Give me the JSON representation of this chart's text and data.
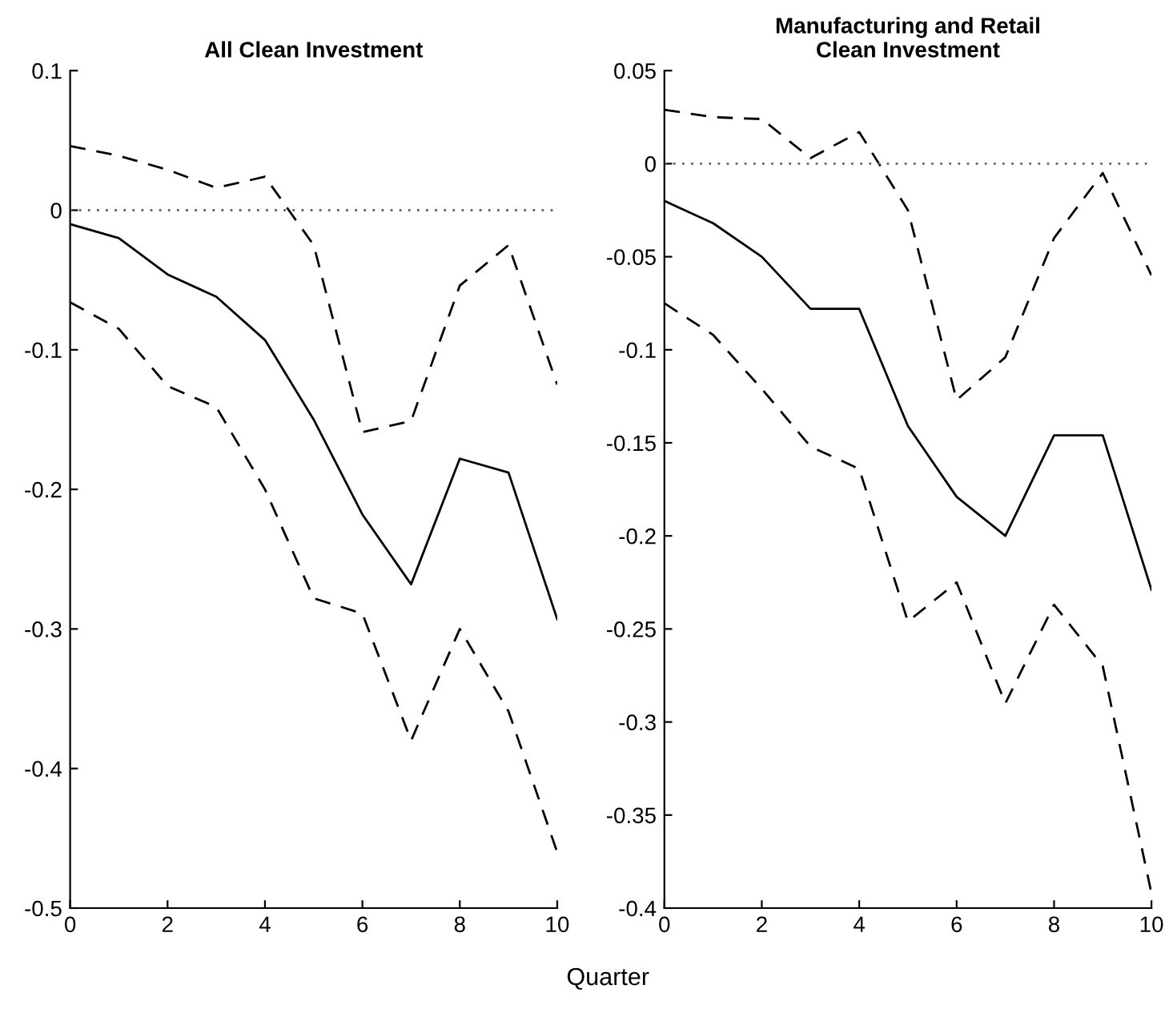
{
  "chart_data": [
    {
      "type": "line",
      "title": "All Clean Investment",
      "xlabel": "Quarter",
      "x": [
        0,
        1,
        2,
        3,
        4,
        5,
        6,
        7,
        8,
        9,
        10
      ],
      "series": [
        {
          "color": "#000000",
          "line_style": "solid",
          "values": [
            -0.01,
            -0.02,
            -0.046,
            -0.062,
            -0.093,
            -0.15,
            -0.218,
            -0.268,
            -0.178,
            -0.188,
            -0.293
          ]
        },
        {
          "color": "#000000",
          "line_style": "dashed",
          "values": [
            0.046,
            0.039,
            0.029,
            0.016,
            0.024,
            -0.025,
            -0.159,
            -0.151,
            -0.054,
            -0.025,
            -0.125
          ]
        },
        {
          "color": "#000000",
          "line_style": "dashed",
          "values": [
            -0.066,
            -0.085,
            -0.126,
            -0.141,
            -0.2,
            -0.278,
            -0.289,
            -0.38,
            -0.3,
            -0.359,
            -0.46
          ]
        }
      ],
      "xlim": [
        0,
        10
      ],
      "xticks": [
        0,
        2,
        4,
        6,
        8,
        10
      ],
      "ylim": [
        -0.5,
        0.1
      ],
      "yticks": [
        -0.5,
        -0.4,
        -0.3,
        -0.2,
        -0.1,
        0,
        0.1
      ],
      "ref_lines": [
        {
          "axis": "y",
          "value": 0,
          "color": "#666666",
          "line_style": "dotted"
        }
      ],
      "grid": false,
      "legend": false
    },
    {
      "type": "line",
      "title": "Manufacturing and Retail\nClean Investment",
      "x": [
        0,
        1,
        2,
        3,
        4,
        5,
        6,
        7,
        8,
        9,
        10
      ],
      "series": [
        {
          "color": "#000000",
          "line_style": "solid",
          "values": [
            -0.02,
            -0.032,
            -0.05,
            -0.078,
            -0.078,
            -0.141,
            -0.179,
            -0.2,
            -0.146,
            -0.146,
            -0.229
          ]
        },
        {
          "color": "#000000",
          "line_style": "dashed",
          "values": [
            0.029,
            0.025,
            0.024,
            0.003,
            0.017,
            -0.025,
            -0.127,
            -0.104,
            -0.04,
            -0.005,
            -0.06
          ]
        },
        {
          "color": "#000000",
          "line_style": "dashed",
          "values": [
            -0.075,
            -0.092,
            -0.121,
            -0.152,
            -0.164,
            -0.246,
            -0.225,
            -0.29,
            -0.237,
            -0.27,
            -0.392
          ]
        }
      ],
      "xlim": [
        0,
        10
      ],
      "xticks": [
        0,
        2,
        4,
        6,
        8,
        10
      ],
      "ylim": [
        -0.4,
        0.05
      ],
      "yticks": [
        -0.4,
        -0.35,
        -0.3,
        -0.25,
        -0.2,
        -0.15,
        -0.1,
        -0.05,
        0,
        0.05
      ],
      "ref_lines": [
        {
          "axis": "y",
          "value": 0,
          "color": "#666666",
          "line_style": "dotted"
        }
      ],
      "grid": false,
      "legend": false
    }
  ]
}
